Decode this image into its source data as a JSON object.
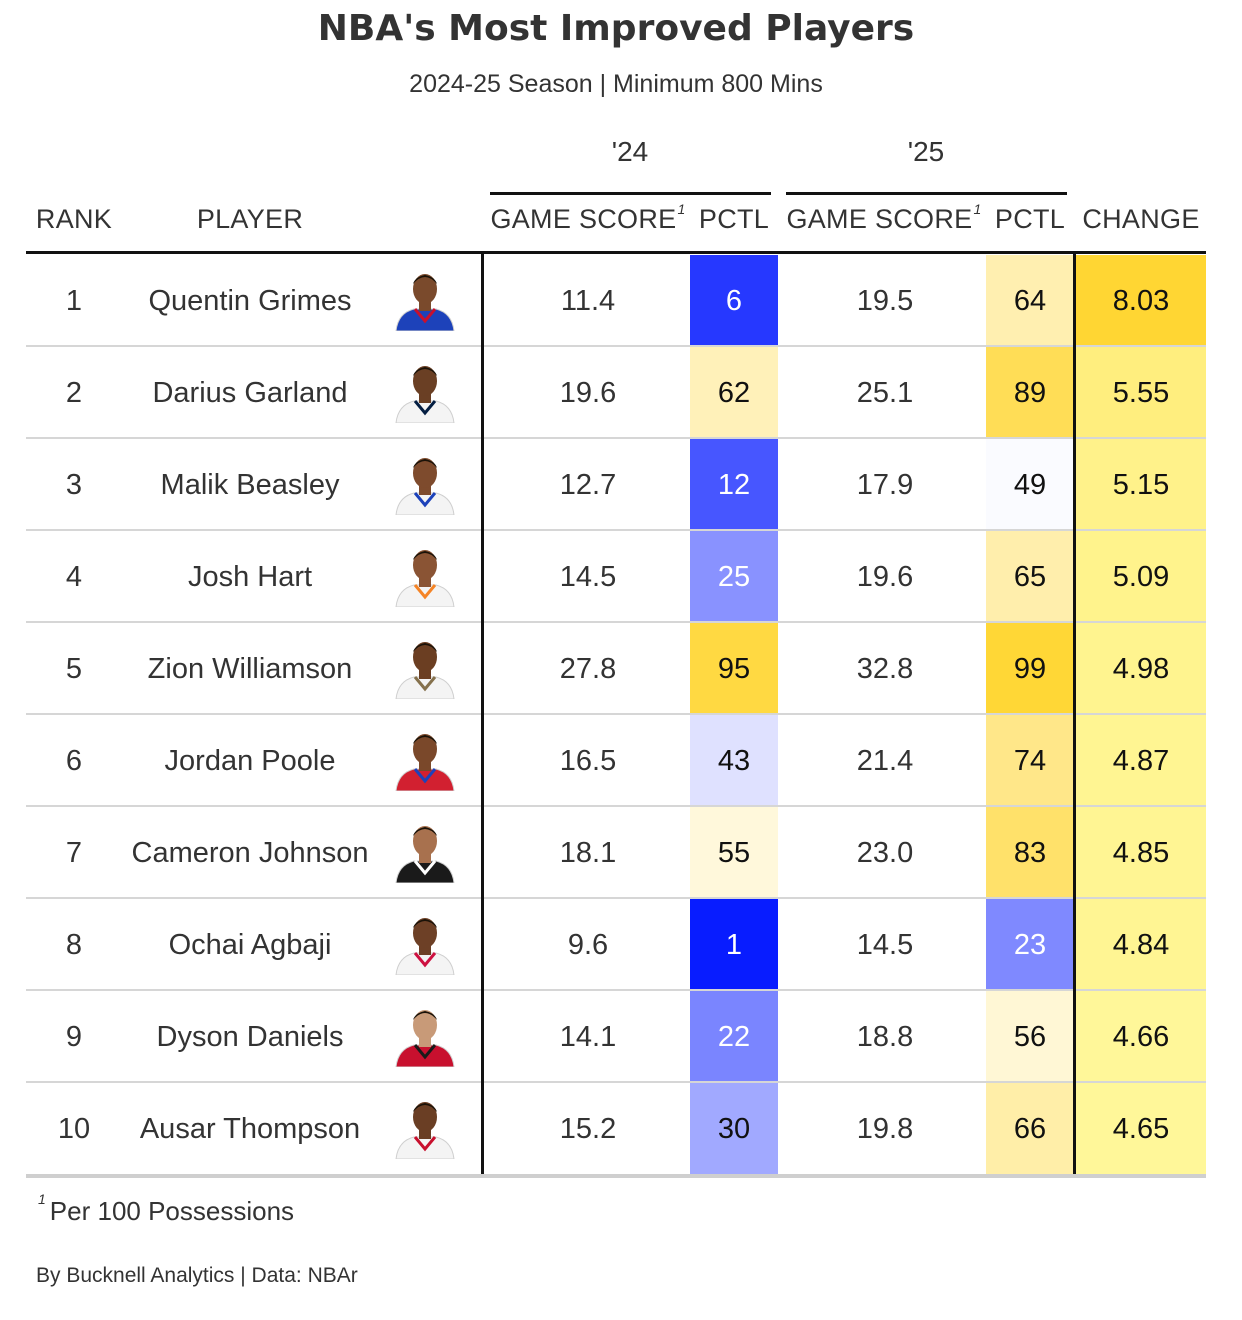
{
  "title": "NBA's Most Improved Players",
  "subtitle": "2024-25 Season | Minimum 800 Mins",
  "spanners": {
    "y24": "'24",
    "y25": "'25"
  },
  "columns": {
    "rank": "RANK",
    "player": "PLAYER",
    "gs24": "GAME SCORE",
    "pctl24": "PCTL",
    "gs25": "GAME SCORE",
    "pctl25": "PCTL",
    "change": "CHANGE",
    "footnote_marker": "1"
  },
  "footnote": {
    "marker": "1",
    "text": "Per 100 Possessions"
  },
  "source": "By Bucknell Analytics | Data: NBAr",
  "chart_data": {
    "type": "table",
    "columns": [
      "RANK",
      "PLAYER",
      "'24 GAME SCORE",
      "'24 PCTL",
      "'25 GAME SCORE",
      "'25 PCTL",
      "CHANGE"
    ],
    "rows": [
      {
        "rank": "1",
        "player": "Quentin Grimes",
        "gs24": "11.4",
        "pctl24": 6,
        "gs25": "19.5",
        "pctl25": 64,
        "change": "8.03",
        "jersey": "#1d42ba",
        "trim": "#c8102e",
        "skin": "#7a4a2c"
      },
      {
        "rank": "2",
        "player": "Darius Garland",
        "gs24": "19.6",
        "pctl24": 62,
        "gs25": "25.1",
        "pctl25": 89,
        "change": "5.55",
        "jersey": "#f4f4f4",
        "trim": "#041e42",
        "skin": "#6a3f24"
      },
      {
        "rank": "3",
        "player": "Malik Beasley",
        "gs24": "12.7",
        "pctl24": 12,
        "gs25": "17.9",
        "pctl25": 49,
        "change": "5.15",
        "jersey": "#f4f4f4",
        "trim": "#1d42ba",
        "skin": "#7e4b2d"
      },
      {
        "rank": "4",
        "player": "Josh Hart",
        "gs24": "14.5",
        "pctl24": 25,
        "gs25": "19.6",
        "pctl25": 65,
        "change": "5.09",
        "jersey": "#f4f4f4",
        "trim": "#f58426",
        "skin": "#8a5434"
      },
      {
        "rank": "5",
        "player": "Zion Williamson",
        "gs24": "27.8",
        "pctl24": 95,
        "gs25": "32.8",
        "pctl25": 99,
        "change": "4.98",
        "jersey": "#f4f4f4",
        "trim": "#85714d",
        "skin": "#6b3e22"
      },
      {
        "rank": "6",
        "player": "Jordan Poole",
        "gs24": "16.5",
        "pctl24": 43,
        "gs25": "21.4",
        "pctl25": 74,
        "change": "4.87",
        "jersey": "#d22030",
        "trim": "#1d42ba",
        "skin": "#7a482a"
      },
      {
        "rank": "7",
        "player": "Cameron Johnson",
        "gs24": "18.1",
        "pctl24": 55,
        "gs25": "23.0",
        "pctl25": 83,
        "change": "4.85",
        "jersey": "#1a1a1a",
        "trim": "#ffffff",
        "skin": "#a8714e"
      },
      {
        "rank": "8",
        "player": "Ochai Agbaji",
        "gs24": "9.6",
        "pctl24": 1,
        "gs25": "14.5",
        "pctl25": 23,
        "change": "4.84",
        "jersey": "#f4f4f4",
        "trim": "#ce1141",
        "skin": "#6d4026"
      },
      {
        "rank": "9",
        "player": "Dyson Daniels",
        "gs24": "14.1",
        "pctl24": 22,
        "gs25": "18.8",
        "pctl25": 56,
        "change": "4.66",
        "jersey": "#c8102e",
        "trim": "#1a1a1a",
        "skin": "#c89a78"
      },
      {
        "rank": "10",
        "player": "Ausar Thompson",
        "gs24": "15.2",
        "pctl24": 30,
        "gs25": "19.8",
        "pctl25": 66,
        "change": "4.65",
        "jersey": "#f4f4f4",
        "trim": "#c8102e",
        "skin": "#6a3e24"
      }
    ],
    "change_range": [
      4.65,
      8.03
    ],
    "colors": {
      "low": "#0015ff",
      "mid": "#ffffff",
      "high": "#ffd633"
    }
  }
}
